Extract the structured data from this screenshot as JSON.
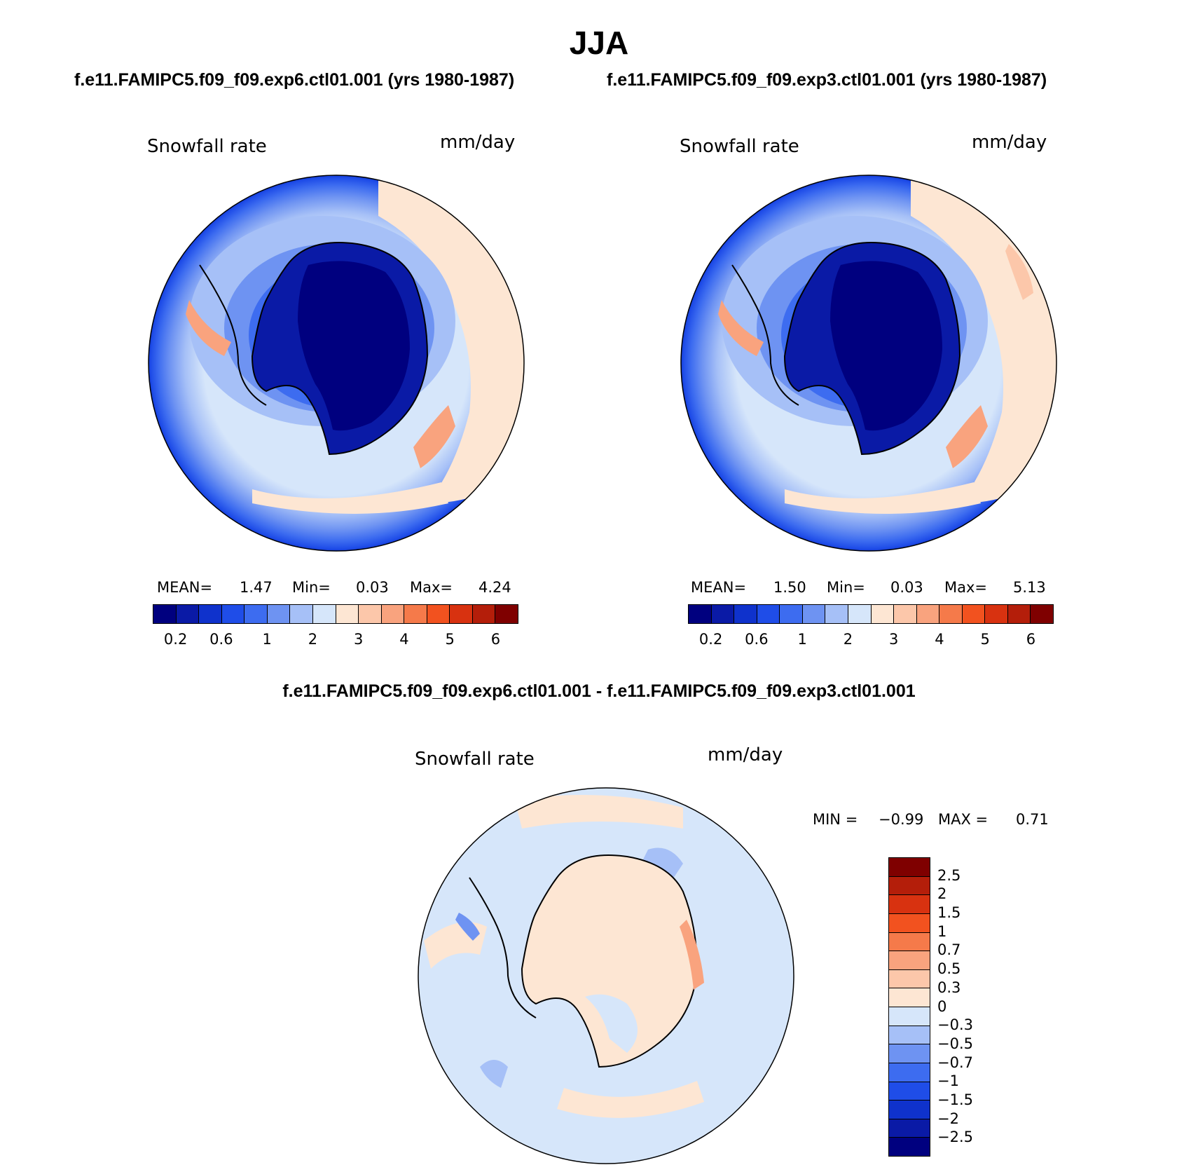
{
  "title": "JJA",
  "panels": [
    {
      "case": "f.e11.FAMIPC5.f09_f09.exp6.ctl01.001 (yrs 1980-1987)",
      "variable": "Snowfall rate",
      "units": "mm/day",
      "stats": {
        "mean_label": "MEAN=",
        "mean": "1.47",
        "min_label": "Min=",
        "min": "0.03",
        "max_label": "Max=",
        "max": "4.24"
      }
    },
    {
      "case": "f.e11.FAMIPC5.f09_f09.exp3.ctl01.001 (yrs 1980-1987)",
      "variable": "Snowfall rate",
      "units": "mm/day",
      "stats": {
        "mean_label": "MEAN=",
        "mean": "1.50",
        "min_label": "Min=",
        "min": "0.03",
        "max_label": "Max=",
        "max": "5.13"
      }
    }
  ],
  "abs_colorbar": {
    "colors": [
      "#00007f",
      "#0a1aa6",
      "#0f32cc",
      "#1f4de8",
      "#3d6cf0",
      "#6e93f2",
      "#a6c0f7",
      "#d6e6fa",
      "#fde6d3",
      "#fcc7aa",
      "#f9a37e",
      "#f57a4a",
      "#f2521f",
      "#d83210",
      "#b41e0a",
      "#7f0000"
    ],
    "ticks": [
      "0.2",
      "0.6",
      "1",
      "2",
      "3",
      "4",
      "5",
      "6"
    ]
  },
  "difference": {
    "title": "f.e11.FAMIPC5.f09_f09.exp6.ctl01.001 - f.e11.FAMIPC5.f09_f09.exp3.ctl01.001",
    "variable": "Snowfall rate",
    "units": "mm/day",
    "min_label": "MIN =",
    "min": "−0.99",
    "max_label": "MAX =",
    "max": "0.71",
    "colors_top_to_bottom": [
      "#7f0000",
      "#b41e0a",
      "#d83210",
      "#f2521f",
      "#f57a4a",
      "#f9a37e",
      "#fcc7aa",
      "#fde6d3",
      "#d6e6fa",
      "#a6c0f7",
      "#6e93f2",
      "#3d6cf0",
      "#1f4de8",
      "#0f32cc",
      "#0a1aa6",
      "#00007f"
    ],
    "ticks": [
      "2.5",
      "2",
      "1.5",
      "1",
      "0.7",
      "0.5",
      "0.3",
      "0",
      "−0.3",
      "−0.5",
      "−0.7",
      "−1",
      "−1.5",
      "−2",
      "−2.5"
    ]
  }
}
